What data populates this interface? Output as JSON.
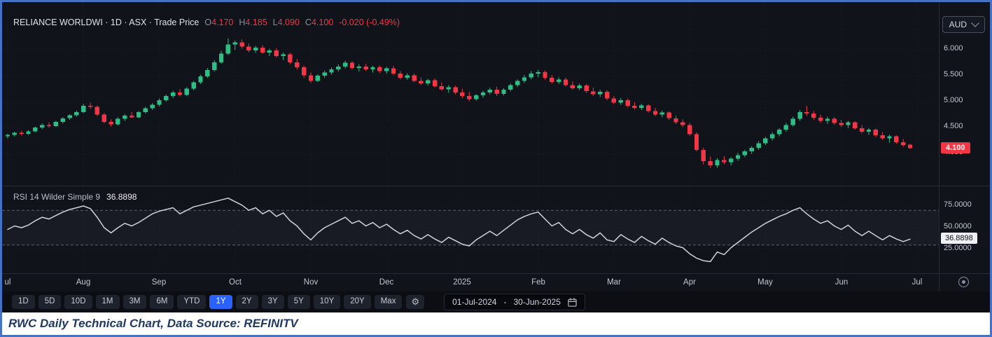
{
  "header": {
    "title": "RELIANCE WORLDWI · 1D · ASX · Trade Price",
    "o_label": "O",
    "o": "4.170",
    "h_label": "H",
    "h": "4.185",
    "l_label": "L",
    "l": "4.090",
    "c_label": "C",
    "c": "4.100",
    "change": "-0.020 (-0.49%)"
  },
  "currency_selector": {
    "value": "AUD"
  },
  "rsi_legend": {
    "title": "RSI 14 Wilder Simple 9",
    "value": "36.8898"
  },
  "toolbar": {
    "ranges": [
      "1D",
      "5D",
      "10D",
      "1M",
      "3M",
      "6M",
      "YTD",
      "1Y",
      "2Y",
      "3Y",
      "5Y",
      "10Y",
      "20Y",
      "Max"
    ],
    "selected_range": "1Y",
    "date_range": {
      "start": "01-Jul-2024",
      "separator": "-",
      "end": "30-Jun-2025"
    }
  },
  "icons": {
    "settings_gear": "⚙"
  },
  "caption": {
    "text": "RWC Daily Technical Chart, Data Source: REFINITV"
  },
  "theme": {
    "background": "#10131a",
    "up": "#2ebd85",
    "down": "#f23645",
    "accent_blue": "#2962ff",
    "badge_red": "#f23645",
    "border_blue": "#4472c4",
    "axis_text": "#c2c6d0"
  },
  "chart_data": [
    {
      "type": "candlestick",
      "symbol": "RELIANCE WORLDWI",
      "interval": "1D",
      "exchange": "ASX",
      "series": "Trade Price",
      "last_close": 4.1,
      "ohlc_last": {
        "open": 4.17,
        "high": 4.185,
        "low": 4.09,
        "close": 4.1,
        "change": -0.02,
        "change_pct": -0.49
      },
      "ylim": [
        3.4,
        6.92
      ],
      "yticks": [
        4.0,
        4.5,
        5.0,
        5.5,
        6.0
      ],
      "x_ticks": [
        {
          "label": "ul",
          "i": 0
        },
        {
          "label": "Aug",
          "i": 11
        },
        {
          "label": "Sep",
          "i": 22
        },
        {
          "label": "Oct",
          "i": 33
        },
        {
          "label": "Nov",
          "i": 44
        },
        {
          "label": "Dec",
          "i": 55
        },
        {
          "label": "2025",
          "i": 66
        },
        {
          "label": "Feb",
          "i": 77
        },
        {
          "label": "Mar",
          "i": 88
        },
        {
          "label": "Apr",
          "i": 99
        },
        {
          "label": "May",
          "i": 110
        },
        {
          "label": "Jun",
          "i": 121
        },
        {
          "label": "Jul",
          "i": 132
        }
      ],
      "colors": {
        "up": "#2ebd85",
        "down": "#f23645"
      },
      "candles": [
        [
          4.33,
          4.38,
          4.29,
          4.36
        ],
        [
          4.36,
          4.42,
          4.33,
          4.4
        ],
        [
          4.4,
          4.44,
          4.35,
          4.38
        ],
        [
          4.38,
          4.45,
          4.36,
          4.43
        ],
        [
          4.43,
          4.52,
          4.41,
          4.5
        ],
        [
          4.5,
          4.58,
          4.47,
          4.55
        ],
        [
          4.55,
          4.6,
          4.5,
          4.53
        ],
        [
          4.53,
          4.63,
          4.51,
          4.61
        ],
        [
          4.61,
          4.7,
          4.58,
          4.68
        ],
        [
          4.68,
          4.76,
          4.65,
          4.74
        ],
        [
          4.74,
          4.83,
          4.71,
          4.8
        ],
        [
          4.8,
          4.96,
          4.78,
          4.92
        ],
        [
          4.92,
          4.98,
          4.86,
          4.9
        ],
        [
          4.9,
          4.93,
          4.72,
          4.75
        ],
        [
          4.75,
          4.78,
          4.58,
          4.61
        ],
        [
          4.61,
          4.66,
          4.52,
          4.56
        ],
        [
          4.56,
          4.7,
          4.54,
          4.67
        ],
        [
          4.67,
          4.76,
          4.63,
          4.73
        ],
        [
          4.73,
          4.8,
          4.68,
          4.7
        ],
        [
          4.7,
          4.82,
          4.68,
          4.8
        ],
        [
          4.8,
          4.9,
          4.77,
          4.87
        ],
        [
          4.87,
          4.97,
          4.84,
          4.94
        ],
        [
          4.94,
          5.06,
          4.91,
          5.03
        ],
        [
          5.03,
          5.14,
          5.0,
          5.11
        ],
        [
          5.11,
          5.21,
          5.07,
          5.18
        ],
        [
          5.18,
          5.24,
          5.1,
          5.13
        ],
        [
          5.13,
          5.28,
          5.11,
          5.25
        ],
        [
          5.25,
          5.4,
          5.22,
          5.37
        ],
        [
          5.37,
          5.52,
          5.34,
          5.49
        ],
        [
          5.49,
          5.65,
          5.46,
          5.61
        ],
        [
          5.61,
          5.8,
          5.58,
          5.76
        ],
        [
          5.76,
          5.98,
          5.73,
          5.93
        ],
        [
          5.93,
          6.22,
          5.9,
          6.1
        ],
        [
          6.1,
          6.18,
          6.0,
          6.14
        ],
        [
          6.14,
          6.2,
          6.02,
          6.06
        ],
        [
          6.06,
          6.12,
          5.95,
          5.99
        ],
        [
          5.99,
          6.08,
          5.94,
          6.04
        ],
        [
          6.04,
          6.09,
          5.92,
          5.95
        ],
        [
          5.95,
          6.02,
          5.88,
          5.99
        ],
        [
          5.99,
          6.03,
          5.85,
          5.88
        ],
        [
          5.88,
          5.95,
          5.8,
          5.91
        ],
        [
          5.91,
          5.94,
          5.72,
          5.76
        ],
        [
          5.76,
          5.82,
          5.62,
          5.66
        ],
        [
          5.66,
          5.7,
          5.46,
          5.51
        ],
        [
          5.51,
          5.56,
          5.36,
          5.4
        ],
        [
          5.4,
          5.53,
          5.38,
          5.5
        ],
        [
          5.5,
          5.6,
          5.46,
          5.56
        ],
        [
          5.56,
          5.66,
          5.52,
          5.62
        ],
        [
          5.62,
          5.72,
          5.58,
          5.68
        ],
        [
          5.68,
          5.79,
          5.64,
          5.75
        ],
        [
          5.75,
          5.78,
          5.62,
          5.65
        ],
        [
          5.65,
          5.72,
          5.58,
          5.68
        ],
        [
          5.68,
          5.73,
          5.59,
          5.62
        ],
        [
          5.62,
          5.69,
          5.56,
          5.66
        ],
        [
          5.66,
          5.7,
          5.55,
          5.59
        ],
        [
          5.59,
          5.67,
          5.54,
          5.64
        ],
        [
          5.64,
          5.69,
          5.51,
          5.54
        ],
        [
          5.54,
          5.59,
          5.43,
          5.46
        ],
        [
          5.46,
          5.55,
          5.42,
          5.51
        ],
        [
          5.51,
          5.54,
          5.37,
          5.4
        ],
        [
          5.4,
          5.47,
          5.32,
          5.35
        ],
        [
          5.35,
          5.44,
          5.31,
          5.41
        ],
        [
          5.41,
          5.45,
          5.27,
          5.3
        ],
        [
          5.3,
          5.37,
          5.21,
          5.24
        ],
        [
          5.24,
          5.32,
          5.17,
          5.28
        ],
        [
          5.28,
          5.31,
          5.14,
          5.18
        ],
        [
          5.18,
          5.25,
          5.07,
          5.11
        ],
        [
          5.11,
          5.19,
          5.01,
          5.05
        ],
        [
          5.05,
          5.15,
          5.02,
          5.12
        ],
        [
          5.12,
          5.21,
          5.08,
          5.18
        ],
        [
          5.18,
          5.27,
          5.14,
          5.23
        ],
        [
          5.23,
          5.29,
          5.11,
          5.15
        ],
        [
          5.15,
          5.26,
          5.12,
          5.23
        ],
        [
          5.23,
          5.35,
          5.2,
          5.32
        ],
        [
          5.32,
          5.43,
          5.28,
          5.4
        ],
        [
          5.4,
          5.51,
          5.36,
          5.47
        ],
        [
          5.47,
          5.59,
          5.43,
          5.54
        ],
        [
          5.54,
          5.61,
          5.47,
          5.57
        ],
        [
          5.57,
          5.6,
          5.43,
          5.46
        ],
        [
          5.46,
          5.51,
          5.35,
          5.38
        ],
        [
          5.38,
          5.47,
          5.34,
          5.43
        ],
        [
          5.43,
          5.46,
          5.29,
          5.32
        ],
        [
          5.32,
          5.39,
          5.23,
          5.26
        ],
        [
          5.26,
          5.35,
          5.22,
          5.31
        ],
        [
          5.31,
          5.34,
          5.17,
          5.2
        ],
        [
          5.2,
          5.27,
          5.11,
          5.14
        ],
        [
          5.14,
          5.23,
          5.09,
          5.19
        ],
        [
          5.19,
          5.22,
          5.03,
          5.06
        ],
        [
          5.06,
          5.11,
          4.95,
          4.98
        ],
        [
          4.98,
          5.07,
          4.94,
          5.03
        ],
        [
          5.03,
          5.06,
          4.89,
          4.92
        ],
        [
          4.92,
          4.99,
          4.85,
          4.88
        ],
        [
          4.88,
          4.96,
          4.84,
          4.93
        ],
        [
          4.93,
          4.95,
          4.79,
          4.82
        ],
        [
          4.82,
          4.88,
          4.72,
          4.75
        ],
        [
          4.75,
          4.83,
          4.7,
          4.79
        ],
        [
          4.79,
          4.81,
          4.65,
          4.68
        ],
        [
          4.68,
          4.73,
          4.57,
          4.6
        ],
        [
          4.6,
          4.66,
          4.51,
          4.55
        ],
        [
          4.55,
          4.59,
          4.34,
          4.37
        ],
        [
          4.37,
          4.41,
          4.04,
          4.07
        ],
        [
          4.07,
          4.11,
          3.79,
          3.85
        ],
        [
          3.85,
          3.94,
          3.72,
          3.77
        ],
        [
          3.77,
          3.91,
          3.73,
          3.87
        ],
        [
          3.87,
          3.95,
          3.79,
          3.83
        ],
        [
          3.83,
          3.93,
          3.77,
          3.9
        ],
        [
          3.9,
          4.01,
          3.86,
          3.97
        ],
        [
          3.97,
          4.07,
          3.93,
          4.04
        ],
        [
          4.04,
          4.14,
          3.99,
          4.11
        ],
        [
          4.11,
          4.24,
          4.07,
          4.2
        ],
        [
          4.2,
          4.32,
          4.16,
          4.29
        ],
        [
          4.29,
          4.41,
          4.25,
          4.37
        ],
        [
          4.37,
          4.49,
          4.33,
          4.46
        ],
        [
          4.46,
          4.59,
          4.42,
          4.55
        ],
        [
          4.55,
          4.71,
          4.52,
          4.67
        ],
        [
          4.67,
          4.84,
          4.63,
          4.8
        ],
        [
          4.8,
          4.92,
          4.73,
          4.77
        ],
        [
          4.77,
          4.82,
          4.65,
          4.69
        ],
        [
          4.69,
          4.75,
          4.59,
          4.63
        ],
        [
          4.63,
          4.71,
          4.57,
          4.67
        ],
        [
          4.67,
          4.7,
          4.55,
          4.59
        ],
        [
          4.59,
          4.65,
          4.51,
          4.55
        ],
        [
          4.55,
          4.63,
          4.49,
          4.6
        ],
        [
          4.6,
          4.62,
          4.46,
          4.49
        ],
        [
          4.49,
          4.55,
          4.39,
          4.42
        ],
        [
          4.42,
          4.49,
          4.36,
          4.46
        ],
        [
          4.46,
          4.48,
          4.32,
          4.35
        ],
        [
          4.35,
          4.41,
          4.26,
          4.29
        ],
        [
          4.29,
          4.36,
          4.21,
          4.33
        ],
        [
          4.33,
          4.35,
          4.19,
          4.22
        ],
        [
          4.22,
          4.28,
          4.13,
          4.16
        ],
        [
          4.17,
          4.185,
          4.09,
          4.1
        ]
      ]
    },
    {
      "type": "line",
      "title": "RSI 14 Wilder Simple 9",
      "last_value": 36.8898,
      "ylim": [
        0,
        100
      ],
      "yticks": [
        25,
        50,
        75
      ],
      "band": [
        30,
        70
      ],
      "color": "#cfd3db",
      "values": [
        48,
        52,
        50,
        53,
        58,
        62,
        60,
        64,
        68,
        71,
        73,
        75,
        72,
        62,
        50,
        44,
        50,
        55,
        52,
        56,
        61,
        66,
        69,
        71,
        73,
        66,
        70,
        74,
        76,
        78,
        80,
        82,
        84,
        80,
        76,
        70,
        73,
        66,
        70,
        63,
        67,
        58,
        52,
        43,
        36,
        44,
        50,
        54,
        58,
        62,
        55,
        58,
        52,
        56,
        50,
        54,
        48,
        43,
        47,
        41,
        37,
        42,
        37,
        33,
        39,
        35,
        31,
        29,
        36,
        41,
        46,
        41,
        47,
        53,
        59,
        63,
        66,
        68,
        60,
        52,
        56,
        48,
        43,
        48,
        42,
        38,
        44,
        36,
        34,
        42,
        37,
        33,
        40,
        35,
        31,
        38,
        33,
        29,
        27,
        20,
        15,
        12,
        11,
        22,
        19,
        27,
        33,
        39,
        45,
        50,
        55,
        59,
        63,
        66,
        70,
        73,
        66,
        60,
        55,
        58,
        52,
        48,
        53,
        46,
        41,
        46,
        41,
        36,
        41,
        37,
        34,
        36.89
      ]
    }
  ]
}
